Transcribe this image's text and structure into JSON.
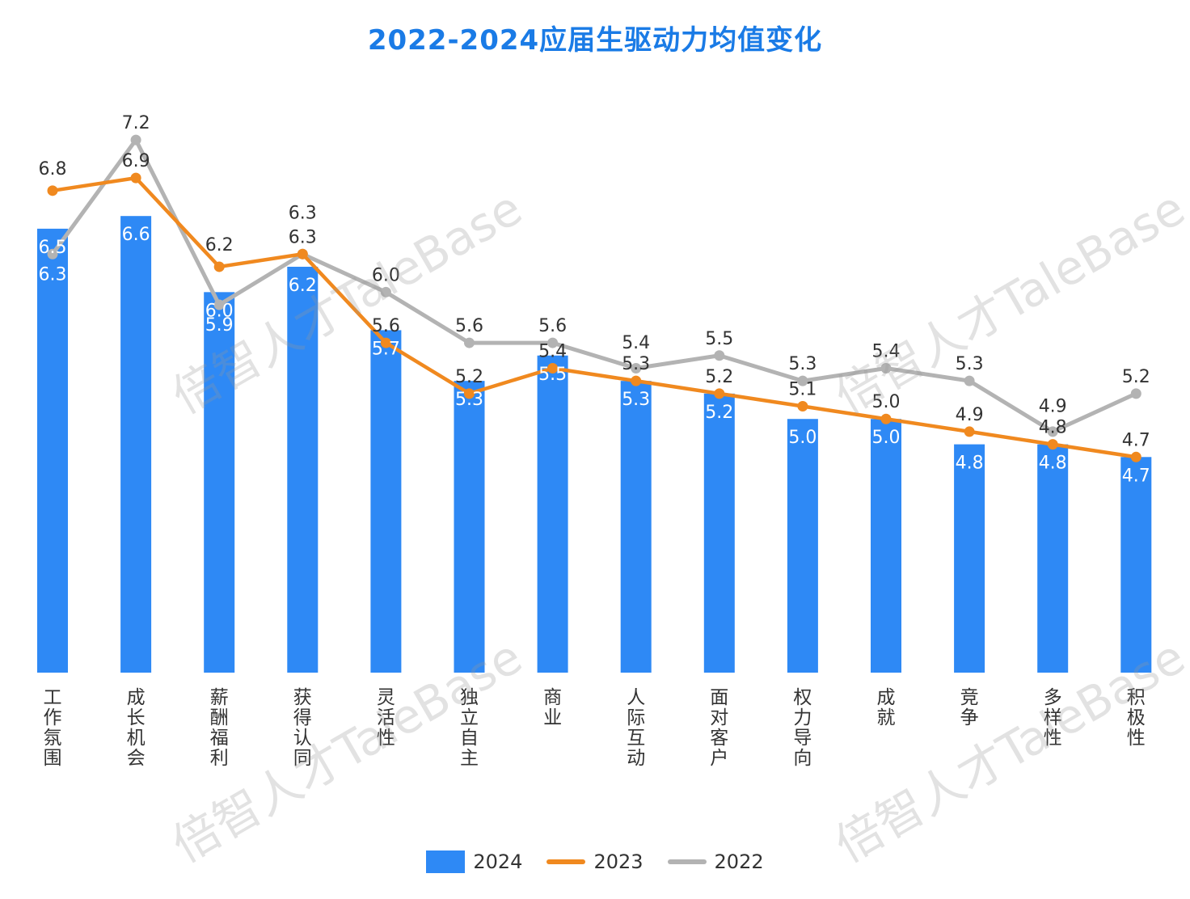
{
  "watermark": "倍智人才TaleBase",
  "chart_data": {
    "type": "bar",
    "title": "2022-2024应届生驱动力均值变化",
    "categories": [
      "工作氛围",
      "成长机会",
      "薪酬福利",
      "获得认同",
      "灵活性",
      "独立自主",
      "商业",
      "人际互动",
      "面对客户",
      "权力导向",
      "成就",
      "竞争",
      "多样性",
      "积极性"
    ],
    "ylim": [
      3.0,
      7.5
    ],
    "grid": false,
    "legend_position": "bottom",
    "series": [
      {
        "name": "2024",
        "type": "bar",
        "color": "#2e89f5",
        "values": [
          6.5,
          6.6,
          6.0,
          6.2,
          5.7,
          5.3,
          5.5,
          5.3,
          5.2,
          5.0,
          5.0,
          4.8,
          4.8,
          4.7
        ]
      },
      {
        "name": "2023",
        "type": "line",
        "color": "#f0891f",
        "values": [
          6.8,
          6.9,
          6.2,
          6.3,
          5.6,
          5.2,
          5.4,
          5.3,
          5.2,
          5.1,
          5.0,
          4.9,
          4.8,
          4.7
        ]
      },
      {
        "name": "2022",
        "type": "line",
        "color": "#b3b3b3",
        "values": [
          6.3,
          7.2,
          5.9,
          6.3,
          6.0,
          5.6,
          5.6,
          5.4,
          5.5,
          5.3,
          5.4,
          5.3,
          4.9,
          5.2
        ]
      }
    ]
  }
}
